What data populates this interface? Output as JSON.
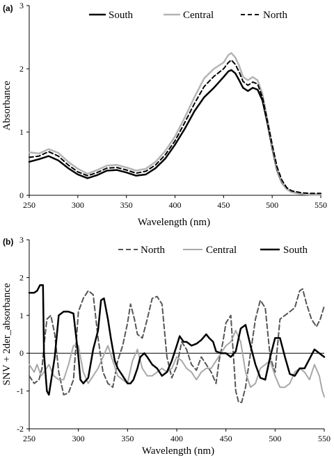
{
  "chart_data": [
    {
      "panel_label": "(a)",
      "type": "line",
      "xlabel": "Wavelength (nm)",
      "ylabel": "Absorbance",
      "xlim": [
        250,
        550
      ],
      "ylim": [
        0,
        3
      ],
      "xticks": [
        250,
        300,
        350,
        400,
        450,
        500,
        550
      ],
      "yticks": [
        0,
        1,
        2,
        3
      ],
      "zero_line": false,
      "legend_position": "top",
      "legend": [
        "South",
        "Central",
        "North"
      ],
      "x": [
        250,
        260,
        270,
        280,
        290,
        300,
        310,
        320,
        330,
        340,
        350,
        360,
        370,
        380,
        390,
        400,
        410,
        420,
        430,
        440,
        450,
        455,
        458,
        462,
        466,
        470,
        475,
        480,
        485,
        490,
        495,
        500,
        505,
        510,
        515,
        520,
        530,
        540,
        550
      ],
      "series": [
        {
          "name": "South",
          "color": "#000000",
          "dash": "",
          "width": 2.5,
          "values": [
            0.53,
            0.57,
            0.62,
            0.55,
            0.43,
            0.33,
            0.27,
            0.32,
            0.39,
            0.4,
            0.36,
            0.31,
            0.33,
            0.43,
            0.58,
            0.8,
            1.05,
            1.33,
            1.55,
            1.7,
            1.87,
            1.96,
            1.98,
            1.93,
            1.82,
            1.7,
            1.65,
            1.7,
            1.67,
            1.5,
            1.15,
            0.75,
            0.4,
            0.2,
            0.1,
            0.05,
            0.02,
            0.01,
            0.01
          ]
        },
        {
          "name": "Central",
          "color": "#b4b4b4",
          "dash": "",
          "width": 2.5,
          "values": [
            0.68,
            0.66,
            0.73,
            0.67,
            0.53,
            0.42,
            0.34,
            0.4,
            0.47,
            0.48,
            0.44,
            0.39,
            0.42,
            0.53,
            0.7,
            0.93,
            1.23,
            1.55,
            1.85,
            2.0,
            2.1,
            2.22,
            2.25,
            2.18,
            2.05,
            1.87,
            1.82,
            1.87,
            1.82,
            1.6,
            1.2,
            0.78,
            0.42,
            0.21,
            0.1,
            0.05,
            0.02,
            0.01,
            0.01
          ]
        },
        {
          "name": "North",
          "color": "#000000",
          "dash": "6,4",
          "width": 2,
          "values": [
            0.6,
            0.62,
            0.69,
            0.62,
            0.48,
            0.37,
            0.31,
            0.36,
            0.43,
            0.44,
            0.4,
            0.35,
            0.38,
            0.48,
            0.64,
            0.86,
            1.15,
            1.45,
            1.72,
            1.88,
            2.0,
            2.1,
            2.14,
            2.07,
            1.95,
            1.8,
            1.74,
            1.79,
            1.76,
            1.55,
            1.18,
            0.8,
            0.45,
            0.24,
            0.12,
            0.07,
            0.04,
            0.03,
            0.03
          ]
        }
      ]
    },
    {
      "panel_label": "(b)",
      "type": "line",
      "xlabel": "Wavelength (nm)",
      "ylabel": "SNV + 2der_absorbance",
      "xlim": [
        250,
        550
      ],
      "ylim": [
        -2,
        3
      ],
      "xticks": [
        250,
        300,
        350,
        400,
        450,
        500,
        550
      ],
      "yticks": [
        -2,
        -1,
        0,
        1,
        2,
        3
      ],
      "zero_line": true,
      "legend_position": "top",
      "legend": [
        "North",
        "Central",
        "South"
      ],
      "series": [
        {
          "name": "North",
          "color": "#555555",
          "dash": "7,4",
          "width": 2,
          "x": [
            250,
            255,
            260,
            263,
            265,
            268,
            272,
            276,
            280,
            285,
            290,
            295,
            300,
            305,
            310,
            315,
            320,
            325,
            330,
            335,
            340,
            345,
            350,
            353,
            357,
            360,
            365,
            370,
            375,
            380,
            385,
            390,
            395,
            400,
            405,
            410,
            415,
            420,
            425,
            430,
            435,
            440,
            443,
            447,
            450,
            455,
            460,
            463,
            466,
            470,
            475,
            480,
            485,
            490,
            495,
            500,
            505,
            510,
            515,
            520,
            525,
            528,
            532,
            537,
            542,
            546,
            550
          ],
          "values": [
            -0.6,
            -0.8,
            -0.7,
            -0.4,
            0.2,
            0.9,
            1.0,
            0.5,
            -0.5,
            -1.1,
            -1.05,
            -0.7,
            1.1,
            1.45,
            1.65,
            1.55,
            0.4,
            -0.5,
            -0.8,
            -0.9,
            -0.2,
            0.2,
            0.8,
            1.3,
            0.9,
            0.5,
            0.4,
            0.9,
            1.45,
            1.5,
            1.3,
            -0.1,
            -0.65,
            -0.35,
            0.3,
            0.1,
            -0.3,
            -0.45,
            -0.1,
            -0.3,
            -0.5,
            -0.8,
            -0.2,
            0.3,
            0.8,
            1.0,
            -1.0,
            -1.3,
            -1.3,
            -0.9,
            0.0,
            0.9,
            1.4,
            1.2,
            -0.1,
            -0.5,
            0.9,
            1.0,
            1.1,
            1.2,
            1.65,
            1.7,
            1.3,
            0.9,
            0.7,
            0.9,
            1.25
          ]
        },
        {
          "name": "Central",
          "color": "#a8a8a8",
          "dash": "",
          "width": 2,
          "x": [
            250,
            255,
            258,
            262,
            265,
            270,
            275,
            280,
            285,
            290,
            295,
            300,
            305,
            310,
            315,
            320,
            325,
            330,
            335,
            340,
            345,
            350,
            355,
            360,
            365,
            370,
            375,
            380,
            385,
            390,
            395,
            400,
            405,
            410,
            415,
            420,
            425,
            430,
            435,
            440,
            445,
            450,
            455,
            460,
            465,
            470,
            475,
            480,
            485,
            490,
            495,
            500,
            505,
            510,
            515,
            520,
            525,
            530,
            535,
            540,
            545,
            548,
            550
          ],
          "values": [
            -0.3,
            -0.5,
            -0.3,
            -0.6,
            -0.5,
            -0.3,
            -0.6,
            -0.7,
            -0.7,
            -0.3,
            0.2,
            0.2,
            -0.5,
            -0.8,
            -0.6,
            -0.4,
            -0.1,
            0.2,
            -0.2,
            -0.6,
            -0.7,
            -0.8,
            -0.2,
            0.1,
            -0.4,
            -0.6,
            -0.6,
            -0.5,
            -0.4,
            -0.5,
            -0.4,
            -0.1,
            -0.2,
            -0.4,
            -0.5,
            -0.7,
            -0.5,
            -0.4,
            -0.4,
            -0.2,
            0.0,
            0.2,
            0.3,
            0.6,
            0.3,
            -0.5,
            -0.9,
            -0.8,
            -0.4,
            -0.3,
            -0.2,
            -0.6,
            -0.9,
            -0.9,
            -0.8,
            -0.5,
            -0.4,
            -0.5,
            -0.7,
            -0.3,
            -0.6,
            -1.0,
            -1.15
          ]
        },
        {
          "name": "South",
          "color": "#000000",
          "dash": "",
          "width": 2.5,
          "x": [
            250,
            255,
            258,
            261,
            264,
            265,
            268,
            270,
            273,
            276,
            280,
            285,
            290,
            295,
            300,
            302,
            305,
            310,
            315,
            320,
            323,
            326,
            330,
            333,
            337,
            340,
            345,
            350,
            353,
            356,
            360,
            363,
            367,
            370,
            375,
            380,
            385,
            390,
            395,
            400,
            403,
            407,
            410,
            415,
            420,
            425,
            430,
            433,
            437,
            440,
            445,
            450,
            455,
            460,
            465,
            470,
            475,
            480,
            485,
            490,
            495,
            500,
            505,
            510,
            515,
            520,
            525,
            530,
            535,
            540,
            545,
            550
          ],
          "values": [
            1.6,
            1.6,
            1.65,
            1.8,
            1.8,
            0.0,
            -1.0,
            -1.1,
            -0.6,
            -0.1,
            1.0,
            1.1,
            1.1,
            1.05,
            -0.1,
            -0.7,
            -0.8,
            -0.65,
            0.1,
            0.6,
            1.4,
            1.45,
            0.9,
            0.4,
            -0.2,
            -0.4,
            -0.6,
            -0.8,
            -0.8,
            -0.7,
            -0.4,
            -0.1,
            0.0,
            -0.1,
            -0.3,
            -0.4,
            -0.6,
            -0.5,
            -0.2,
            0.2,
            0.45,
            0.3,
            0.3,
            0.2,
            0.25,
            0.35,
            0.5,
            0.4,
            0.3,
            0.05,
            0.0,
            0.0,
            -0.1,
            0.05,
            0.65,
            0.75,
            0.2,
            -0.3,
            -0.65,
            -0.7,
            -0.1,
            0.4,
            0.4,
            -0.1,
            -0.55,
            -0.6,
            -0.4,
            -0.4,
            -0.15,
            0.1,
            0.0,
            -0.1
          ]
        }
      ]
    }
  ]
}
